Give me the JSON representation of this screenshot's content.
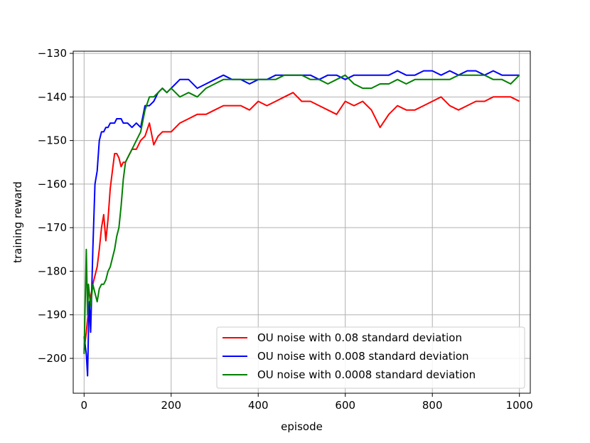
{
  "chart_data": {
    "type": "line",
    "title": "",
    "xlabel": "episode",
    "ylabel": "training reward",
    "xlim": [
      -25,
      1025
    ],
    "ylim": [
      -208,
      -129.5
    ],
    "xticks": [
      0,
      200,
      400,
      600,
      800,
      1000
    ],
    "yticks": [
      -130,
      -140,
      -150,
      -160,
      -170,
      -180,
      -190,
      -200
    ],
    "xtick_labels": [
      "0",
      "200",
      "400",
      "600",
      "800",
      "1000"
    ],
    "ytick_labels": [
      "−130",
      "−140",
      "−150",
      "−160",
      "−170",
      "−180",
      "−190",
      "−200"
    ],
    "grid": true,
    "legend_position": "lower-right",
    "series": [
      {
        "name": "OU noise with 0.08 standard deviation",
        "color": "#ff0000",
        "x": [
          0,
          5,
          10,
          15,
          20,
          25,
          30,
          35,
          40,
          45,
          50,
          55,
          60,
          65,
          70,
          75,
          80,
          85,
          90,
          95,
          100,
          110,
          120,
          130,
          140,
          150,
          160,
          170,
          180,
          190,
          200,
          220,
          240,
          260,
          280,
          300,
          320,
          340,
          360,
          380,
          400,
          420,
          440,
          460,
          480,
          500,
          520,
          540,
          560,
          580,
          600,
          620,
          640,
          660,
          680,
          700,
          720,
          740,
          760,
          780,
          800,
          820,
          840,
          860,
          880,
          900,
          920,
          940,
          960,
          980,
          1000
        ],
        "y": [
          -198,
          -194,
          -189,
          -186,
          -183,
          -181,
          -179,
          -175,
          -170,
          -167,
          -173,
          -168,
          -161,
          -157,
          -153,
          -153,
          -154,
          -156,
          -155,
          -155,
          -154,
          -152,
          -152,
          -150,
          -149,
          -146,
          -151,
          -149,
          -148,
          -148,
          -148,
          -146,
          -145,
          -144,
          -144,
          -143,
          -142,
          -142,
          -142,
          -143,
          -141,
          -142,
          -141,
          -140,
          -139,
          -141,
          -141,
          -142,
          -143,
          -144,
          -141,
          -142,
          -141,
          -143,
          -147,
          -144,
          -142,
          -143,
          -143,
          -142,
          -141,
          -140,
          -142,
          -143,
          -142,
          -141,
          -141,
          -140,
          -140,
          -140,
          -141
        ]
      },
      {
        "name": "OU noise with 0.008 standard deviation",
        "color": "#0000ff",
        "x": [
          0,
          5,
          8,
          10,
          12,
          15,
          20,
          25,
          30,
          35,
          40,
          45,
          50,
          55,
          60,
          65,
          70,
          75,
          80,
          85,
          90,
          95,
          100,
          110,
          120,
          130,
          140,
          150,
          160,
          170,
          180,
          190,
          200,
          210,
          220,
          240,
          260,
          280,
          300,
          320,
          340,
          360,
          380,
          400,
          420,
          440,
          460,
          480,
          500,
          520,
          540,
          560,
          580,
          600,
          620,
          640,
          660,
          680,
          700,
          720,
          740,
          760,
          780,
          800,
          820,
          840,
          860,
          880,
          900,
          920,
          940,
          960,
          980,
          1000
        ],
        "y": [
          -195,
          -199,
          -204,
          -194,
          -187,
          -194,
          -175,
          -160,
          -157,
          -150,
          -148,
          -148,
          -147,
          -147,
          -146,
          -146,
          -146,
          -145,
          -145,
          -145,
          -146,
          -146,
          -146,
          -147,
          -146,
          -147,
          -142,
          -142,
          -141,
          -139,
          -138,
          -139,
          -138,
          -137,
          -136,
          -136,
          -138,
          -137,
          -136,
          -135,
          -136,
          -136,
          -137,
          -136,
          -136,
          -135,
          -135,
          -135,
          -135,
          -135,
          -136,
          -135,
          -135,
          -136,
          -135,
          -135,
          -135,
          -135,
          -135,
          -134,
          -135,
          -135,
          -134,
          -134,
          -135,
          -134,
          -135,
          -134,
          -134,
          -135,
          -134,
          -135,
          -135,
          -135
        ]
      },
      {
        "name": "OU noise with 0.0008 standard deviation",
        "color": "#008000",
        "x": [
          0,
          3,
          5,
          8,
          10,
          15,
          20,
          25,
          30,
          35,
          40,
          45,
          50,
          55,
          60,
          65,
          70,
          75,
          80,
          85,
          90,
          95,
          100,
          110,
          120,
          130,
          140,
          150,
          160,
          170,
          180,
          190,
          200,
          210,
          220,
          240,
          260,
          280,
          300,
          320,
          340,
          360,
          380,
          400,
          420,
          440,
          460,
          480,
          500,
          520,
          540,
          560,
          580,
          600,
          620,
          640,
          660,
          680,
          700,
          720,
          740,
          760,
          780,
          800,
          820,
          840,
          860,
          880,
          900,
          920,
          940,
          960,
          980,
          1000
        ],
        "y": [
          -199,
          -185,
          -175,
          -190,
          -183,
          -188,
          -183,
          -185,
          -187,
          -184,
          -183,
          -183,
          -182,
          -180,
          -179,
          -177,
          -175,
          -172,
          -170,
          -165,
          -159,
          -155,
          -154,
          -152,
          -150,
          -148,
          -143,
          -140,
          -140,
          -139,
          -138,
          -139,
          -138,
          -139,
          -140,
          -139,
          -140,
          -138,
          -137,
          -136,
          -136,
          -136,
          -136,
          -136,
          -136,
          -136,
          -135,
          -135,
          -135,
          -136,
          -136,
          -137,
          -136,
          -135,
          -137,
          -138,
          -138,
          -137,
          -137,
          -136,
          -137,
          -136,
          -136,
          -136,
          -136,
          -136,
          -135,
          -135,
          -135,
          -135,
          -136,
          -136,
          -137,
          -135
        ]
      }
    ]
  }
}
